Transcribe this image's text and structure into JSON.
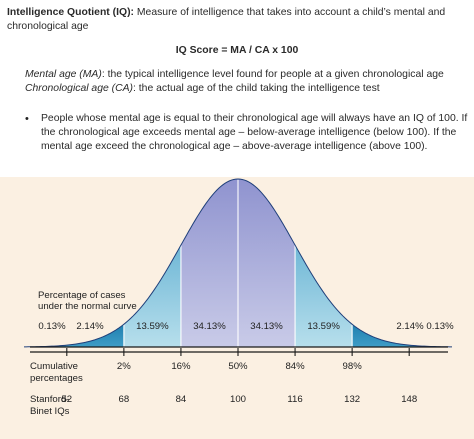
{
  "definition": {
    "term": "Intelligence Quotient (IQ)",
    "colon": ":",
    "text": " Measure of intelligence that takes into account a child’s mental and chronological age"
  },
  "formula": "IQ Score = MA / CA x 100",
  "mental_age": {
    "term": "Mental age (MA)",
    "text": ": the typical intelligence level found for people at a given chronological age"
  },
  "chronological_age": {
    "term": "Chronological age (CA)",
    "text": ": the actual age of the child taking the intelligence test"
  },
  "bullet": {
    "icon": "bullet-dot",
    "text": "People whose mental age is equal to their chronological age will always have an IQ of 100.  If the chronological age exceeds mental age – below-average intelligence (below 100).  If the mental age exceed the chronological age – above-average intelligence (above 100)."
  },
  "colors": {
    "background": "#fbf0e2",
    "center_band": "#a3a6d8",
    "inner_band": "#86c4dc",
    "tail_band": "#2a8cb8",
    "axis": "#1a1a1a"
  },
  "chart_data": {
    "type": "area",
    "ylabel": "Percentage of cases under the normal curve",
    "bands": [
      {
        "label": "0.13%",
        "from": 40,
        "to": 52
      },
      {
        "label": "2.14%",
        "from": 52,
        "to": 68
      },
      {
        "label": "13.59%",
        "from": 68,
        "to": 84
      },
      {
        "label": "34.13%",
        "from": 84,
        "to": 100
      },
      {
        "label": "34.13%",
        "from": 100,
        "to": 116
      },
      {
        "label": "13.59%",
        "from": 116,
        "to": 132
      },
      {
        "label": "2.14%",
        "from": 132,
        "to": 148
      },
      {
        "label": "0.13%",
        "from": 148,
        "to": 160
      }
    ],
    "cumulative_label": [
      "Cumulative",
      "percentages"
    ],
    "cumulative": [
      {
        "x": 68,
        "label": "2%"
      },
      {
        "x": 84,
        "label": "16%"
      },
      {
        "x": 100,
        "label": "50%"
      },
      {
        "x": 116,
        "label": "84%"
      },
      {
        "x": 132,
        "label": "98%"
      }
    ],
    "iq_label": [
      "Stanford-",
      "Binet IQs"
    ],
    "iq_ticks": [
      52,
      68,
      84,
      100,
      116,
      132,
      148
    ],
    "mean": 100,
    "sd": 16,
    "xlim": [
      40,
      160
    ]
  }
}
